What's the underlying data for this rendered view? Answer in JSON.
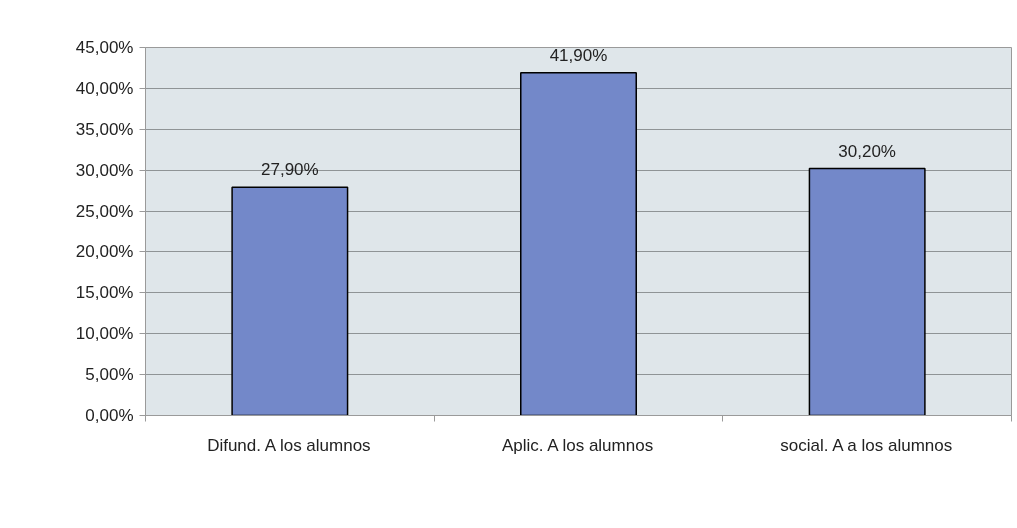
{
  "chart_data": {
    "type": "bar",
    "categories": [
      "Difund. A los alumnos",
      "Aplic. A los alumnos",
      "social. A a los alumnos"
    ],
    "values": [
      27.9,
      41.9,
      30.2
    ],
    "value_labels": [
      "27,90%",
      "41,90%",
      "30,20%"
    ],
    "color": "#7388c9",
    "ylim": [
      0,
      45
    ],
    "yticks": [
      {
        "value": 0,
        "label": "0,00%"
      },
      {
        "value": 5,
        "label": "5,00%"
      },
      {
        "value": 10,
        "label": "10,00%"
      },
      {
        "value": 15,
        "label": "15,00%"
      },
      {
        "value": 20,
        "label": "20,00%"
      },
      {
        "value": 25,
        "label": "25,00%"
      },
      {
        "value": 30,
        "label": "30,00%"
      },
      {
        "value": 35,
        "label": "35,00%"
      },
      {
        "value": 40,
        "label": "40,00%"
      },
      {
        "value": 45,
        "label": "45,00%"
      }
    ],
    "grid": "y"
  }
}
